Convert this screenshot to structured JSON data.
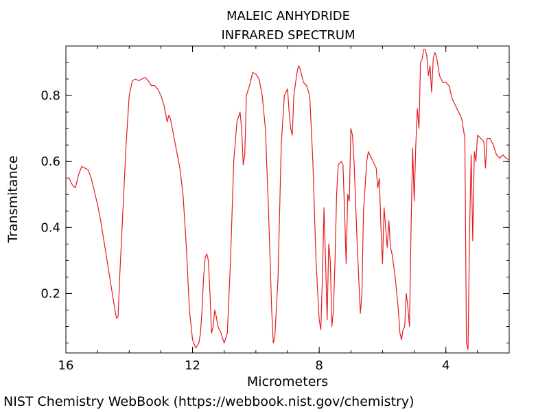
{
  "chart_data": {
    "type": "line",
    "title": "MALEIC ANHYDRIDE",
    "subtitle": "INFRARED SPECTRUM",
    "xlabel": "Micrometers",
    "ylabel": "Transmitance",
    "xlim": [
      16,
      2
    ],
    "ylim": [
      0.02,
      0.95
    ],
    "x_ticks": [
      {
        "value": 16,
        "label": "16"
      },
      {
        "value": 12,
        "label": "12"
      },
      {
        "value": 8,
        "label": "8"
      },
      {
        "value": 4,
        "label": "4"
      }
    ],
    "y_ticks": [
      {
        "value": 0.2,
        "label": "0.2"
      },
      {
        "value": 0.4,
        "label": "0.4"
      },
      {
        "value": 0.6,
        "label": "0.6"
      },
      {
        "value": 0.8,
        "label": "0.8"
      }
    ],
    "x_minor_step": 1,
    "y_minor_step": 0.05,
    "grid": false,
    "series": [
      {
        "color": "#e41a1c",
        "points": [
          [
            16.0,
            0.55
          ],
          [
            15.9,
            0.55
          ],
          [
            15.8,
            0.53
          ],
          [
            15.7,
            0.52
          ],
          [
            15.6,
            0.56
          ],
          [
            15.5,
            0.585
          ],
          [
            15.4,
            0.58
          ],
          [
            15.3,
            0.575
          ],
          [
            15.2,
            0.55
          ],
          [
            15.1,
            0.51
          ],
          [
            15.0,
            0.47
          ],
          [
            14.9,
            0.42
          ],
          [
            14.8,
            0.36
          ],
          [
            14.7,
            0.3
          ],
          [
            14.6,
            0.24
          ],
          [
            14.5,
            0.18
          ],
          [
            14.45,
            0.15
          ],
          [
            14.4,
            0.125
          ],
          [
            14.35,
            0.13
          ],
          [
            14.3,
            0.25
          ],
          [
            14.2,
            0.45
          ],
          [
            14.1,
            0.65
          ],
          [
            14.0,
            0.8
          ],
          [
            13.9,
            0.845
          ],
          [
            13.8,
            0.85
          ],
          [
            13.7,
            0.845
          ],
          [
            13.6,
            0.85
          ],
          [
            13.5,
            0.855
          ],
          [
            13.4,
            0.845
          ],
          [
            13.3,
            0.83
          ],
          [
            13.2,
            0.83
          ],
          [
            13.1,
            0.82
          ],
          [
            13.0,
            0.8
          ],
          [
            12.9,
            0.77
          ],
          [
            12.8,
            0.72
          ],
          [
            12.75,
            0.74
          ],
          [
            12.7,
            0.73
          ],
          [
            12.6,
            0.68
          ],
          [
            12.5,
            0.63
          ],
          [
            12.4,
            0.58
          ],
          [
            12.3,
            0.5
          ],
          [
            12.2,
            0.35
          ],
          [
            12.1,
            0.15
          ],
          [
            12.0,
            0.06
          ],
          [
            11.9,
            0.035
          ],
          [
            11.8,
            0.05
          ],
          [
            11.75,
            0.08
          ],
          [
            11.7,
            0.15
          ],
          [
            11.65,
            0.25
          ],
          [
            11.6,
            0.31
          ],
          [
            11.55,
            0.32
          ],
          [
            11.5,
            0.3
          ],
          [
            11.45,
            0.2
          ],
          [
            11.4,
            0.08
          ],
          [
            11.35,
            0.1
          ],
          [
            11.3,
            0.15
          ],
          [
            11.25,
            0.13
          ],
          [
            11.2,
            0.1
          ],
          [
            11.1,
            0.08
          ],
          [
            11.0,
            0.05
          ],
          [
            10.9,
            0.08
          ],
          [
            10.8,
            0.3
          ],
          [
            10.7,
            0.6
          ],
          [
            10.6,
            0.72
          ],
          [
            10.5,
            0.75
          ],
          [
            10.45,
            0.7
          ],
          [
            10.4,
            0.59
          ],
          [
            10.35,
            0.62
          ],
          [
            10.3,
            0.8
          ],
          [
            10.2,
            0.83
          ],
          [
            10.1,
            0.87
          ],
          [
            10.0,
            0.865
          ],
          [
            9.9,
            0.85
          ],
          [
            9.8,
            0.8
          ],
          [
            9.7,
            0.7
          ],
          [
            9.6,
            0.45
          ],
          [
            9.5,
            0.15
          ],
          [
            9.45,
            0.05
          ],
          [
            9.4,
            0.07
          ],
          [
            9.3,
            0.25
          ],
          [
            9.2,
            0.65
          ],
          [
            9.1,
            0.8
          ],
          [
            9.0,
            0.82
          ],
          [
            8.95,
            0.75
          ],
          [
            8.9,
            0.7
          ],
          [
            8.85,
            0.68
          ],
          [
            8.8,
            0.8
          ],
          [
            8.7,
            0.87
          ],
          [
            8.65,
            0.89
          ],
          [
            8.6,
            0.88
          ],
          [
            8.5,
            0.84
          ],
          [
            8.4,
            0.83
          ],
          [
            8.3,
            0.8
          ],
          [
            8.2,
            0.6
          ],
          [
            8.1,
            0.3
          ],
          [
            8.0,
            0.12
          ],
          [
            7.95,
            0.09
          ],
          [
            7.9,
            0.25
          ],
          [
            7.85,
            0.46
          ],
          [
            7.8,
            0.3
          ],
          [
            7.75,
            0.12
          ],
          [
            7.7,
            0.35
          ],
          [
            7.65,
            0.3
          ],
          [
            7.6,
            0.1
          ],
          [
            7.55,
            0.15
          ],
          [
            7.5,
            0.3
          ],
          [
            7.45,
            0.5
          ],
          [
            7.4,
            0.59
          ],
          [
            7.3,
            0.6
          ],
          [
            7.25,
            0.59
          ],
          [
            7.2,
            0.45
          ],
          [
            7.15,
            0.29
          ],
          [
            7.1,
            0.5
          ],
          [
            7.05,
            0.48
          ],
          [
            7.0,
            0.7
          ],
          [
            6.95,
            0.68
          ],
          [
            6.9,
            0.6
          ],
          [
            6.8,
            0.35
          ],
          [
            6.7,
            0.14
          ],
          [
            6.65,
            0.2
          ],
          [
            6.6,
            0.45
          ],
          [
            6.5,
            0.6
          ],
          [
            6.45,
            0.63
          ],
          [
            6.4,
            0.62
          ],
          [
            6.3,
            0.6
          ],
          [
            6.2,
            0.58
          ],
          [
            6.15,
            0.52
          ],
          [
            6.1,
            0.55
          ],
          [
            6.05,
            0.4
          ],
          [
            6.0,
            0.29
          ],
          [
            5.95,
            0.46
          ],
          [
            5.9,
            0.4
          ],
          [
            5.85,
            0.34
          ],
          [
            5.8,
            0.42
          ],
          [
            5.75,
            0.34
          ],
          [
            5.7,
            0.32
          ],
          [
            5.6,
            0.25
          ],
          [
            5.5,
            0.15
          ],
          [
            5.45,
            0.08
          ],
          [
            5.4,
            0.06
          ],
          [
            5.35,
            0.09
          ],
          [
            5.3,
            0.1
          ],
          [
            5.25,
            0.2
          ],
          [
            5.2,
            0.16
          ],
          [
            5.15,
            0.1
          ],
          [
            5.1,
            0.4
          ],
          [
            5.05,
            0.64
          ],
          [
            5.0,
            0.48
          ],
          [
            4.95,
            0.65
          ],
          [
            4.9,
            0.76
          ],
          [
            4.85,
            0.7
          ],
          [
            4.8,
            0.9
          ],
          [
            4.75,
            0.91
          ],
          [
            4.7,
            0.94
          ],
          [
            4.65,
            0.94
          ],
          [
            4.6,
            0.92
          ],
          [
            4.55,
            0.86
          ],
          [
            4.5,
            0.89
          ],
          [
            4.45,
            0.81
          ],
          [
            4.4,
            0.91
          ],
          [
            4.35,
            0.93
          ],
          [
            4.3,
            0.92
          ],
          [
            4.25,
            0.89
          ],
          [
            4.2,
            0.86
          ],
          [
            4.1,
            0.84
          ],
          [
            4.0,
            0.84
          ],
          [
            3.9,
            0.83
          ],
          [
            3.8,
            0.79
          ],
          [
            3.7,
            0.77
          ],
          [
            3.6,
            0.75
          ],
          [
            3.5,
            0.73
          ],
          [
            3.45,
            0.7
          ],
          [
            3.4,
            0.67
          ],
          [
            3.35,
            0.05
          ],
          [
            3.3,
            0.03
          ],
          [
            3.25,
            0.4
          ],
          [
            3.2,
            0.62
          ],
          [
            3.15,
            0.36
          ],
          [
            3.1,
            0.63
          ],
          [
            3.05,
            0.6
          ],
          [
            3.0,
            0.68
          ],
          [
            2.9,
            0.67
          ],
          [
            2.8,
            0.66
          ],
          [
            2.75,
            0.58
          ],
          [
            2.7,
            0.67
          ],
          [
            2.6,
            0.67
          ],
          [
            2.5,
            0.65
          ],
          [
            2.4,
            0.62
          ],
          [
            2.3,
            0.61
          ],
          [
            2.2,
            0.62
          ],
          [
            2.1,
            0.61
          ],
          [
            2.0,
            0.605
          ]
        ]
      }
    ]
  },
  "footer": {
    "credit": "NIST Chemistry WebBook (https://webbook.nist.gov/chemistry)"
  }
}
